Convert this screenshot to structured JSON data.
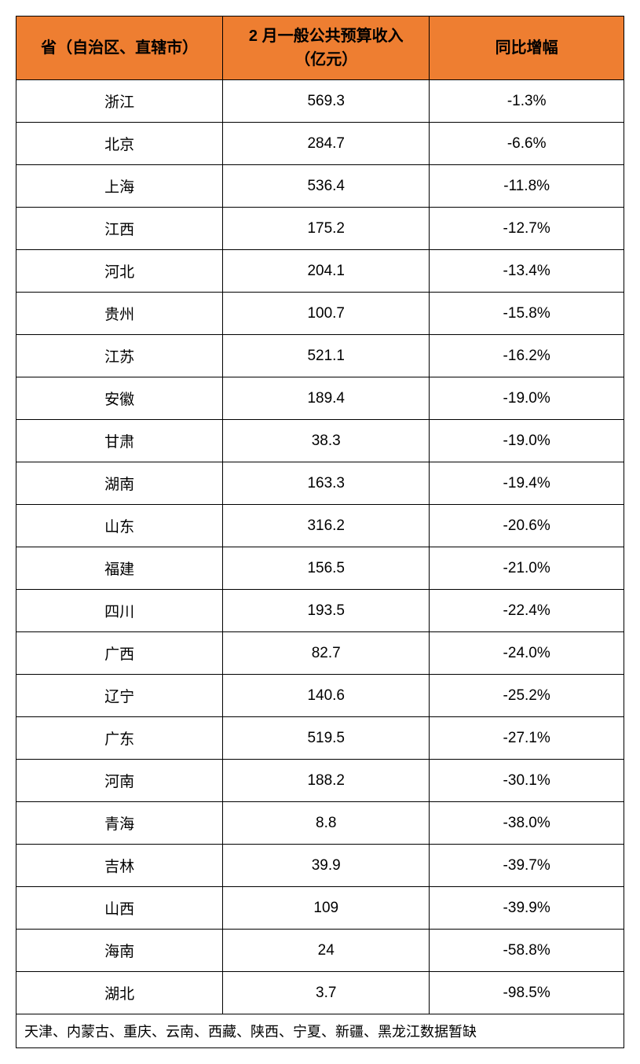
{
  "table": {
    "header_bg": "#ee7e31",
    "border_color": "#000000",
    "columns": [
      "省（自治区、直辖市）",
      "2 月一般公共预算收入\n（亿元）",
      "同比增幅"
    ],
    "rows": [
      {
        "province": "浙江",
        "revenue": "569.3",
        "yoy": "-1.3%"
      },
      {
        "province": "北京",
        "revenue": "284.7",
        "yoy": "-6.6%"
      },
      {
        "province": "上海",
        "revenue": "536.4",
        "yoy": "-11.8%"
      },
      {
        "province": "江西",
        "revenue": "175.2",
        "yoy": "-12.7%"
      },
      {
        "province": "河北",
        "revenue": "204.1",
        "yoy": "-13.4%"
      },
      {
        "province": "贵州",
        "revenue": "100.7",
        "yoy": "-15.8%"
      },
      {
        "province": "江苏",
        "revenue": "521.1",
        "yoy": "-16.2%"
      },
      {
        "province": "安徽",
        "revenue": "189.4",
        "yoy": "-19.0%"
      },
      {
        "province": "甘肃",
        "revenue": "38.3",
        "yoy": "-19.0%"
      },
      {
        "province": "湖南",
        "revenue": "163.3",
        "yoy": "-19.4%"
      },
      {
        "province": "山东",
        "revenue": "316.2",
        "yoy": "-20.6%"
      },
      {
        "province": "福建",
        "revenue": "156.5",
        "yoy": "-21.0%"
      },
      {
        "province": "四川",
        "revenue": "193.5",
        "yoy": "-22.4%"
      },
      {
        "province": "广西",
        "revenue": "82.7",
        "yoy": "-24.0%"
      },
      {
        "province": "辽宁",
        "revenue": "140.6",
        "yoy": "-25.2%"
      },
      {
        "province": "广东",
        "revenue": "519.5",
        "yoy": "-27.1%"
      },
      {
        "province": "河南",
        "revenue": "188.2",
        "yoy": "-30.1%"
      },
      {
        "province": "青海",
        "revenue": "8.8",
        "yoy": "-38.0%"
      },
      {
        "province": "吉林",
        "revenue": "39.9",
        "yoy": "-39.7%"
      },
      {
        "province": "山西",
        "revenue": "109",
        "yoy": "-39.9%"
      },
      {
        "province": "海南",
        "revenue": "24",
        "yoy": "-58.8%"
      },
      {
        "province": "湖北",
        "revenue": "3.7",
        "yoy": "-98.5%"
      }
    ],
    "footer_note": "天津、内蒙古、重庆、云南、西藏、陕西、宁夏、新疆、黑龙江数据暂缺"
  }
}
